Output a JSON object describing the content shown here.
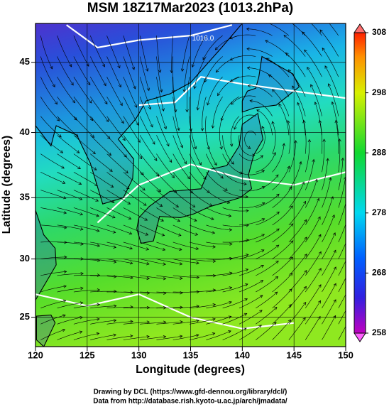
{
  "chart_data": {
    "type": "map",
    "title": "MSM 18Z17Mar2023 (1013.2hPa)",
    "xlabel": "Longitude (degrees)",
    "ylabel": "Latitude  (degrees)",
    "projection": "mercator",
    "xlim": [
      120,
      150
    ],
    "ylim": [
      22.4,
      47.6
    ],
    "xticks": [
      120,
      125,
      130,
      135,
      140,
      145,
      150
    ],
    "yticks": [
      25,
      30,
      35,
      40,
      45
    ],
    "grid": true,
    "colorbar": {
      "clim": [
        258,
        308
      ],
      "ticks": [
        258,
        268,
        278,
        288,
        298,
        308
      ]
    },
    "annotations": [
      "1016.0"
    ],
    "credits": [
      "Drawing by DCL (https://www.gfd-dennou.org/library/dcl/)",
      "Data from http://database.rish.kyoto-u.ac.jp/arch/jmadata/"
    ]
  }
}
